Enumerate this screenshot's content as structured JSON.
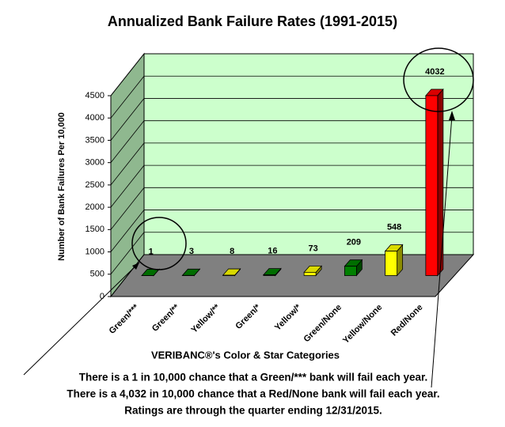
{
  "chart_data": {
    "type": "bar3d",
    "title": "Annualized Bank Failure Rates (1991-2015)",
    "y_label": "Number of Bank Failures Per 10,000",
    "x_label": "VERIBANC®'s Color & Star Categories",
    "categories": [
      "Green/***",
      "Green/**",
      "Yellow/**",
      "Green/*",
      "Yellow/*",
      "Green/None",
      "Yellow/None",
      "Red/None"
    ],
    "values": [
      1,
      3,
      8,
      16,
      73,
      209,
      548,
      4032
    ],
    "colors": [
      "#008000",
      "#008000",
      "#ffff00",
      "#008000",
      "#ffff00",
      "#008000",
      "#ffff00",
      "#ff0000"
    ],
    "ylim": [
      0,
      4500
    ],
    "yticks": [
      0,
      500,
      1000,
      1500,
      2000,
      2500,
      3000,
      3500,
      4000,
      4500
    ],
    "grid": true,
    "annotations": [
      "There is a 1 in 10,000 chance that a Green/*** bank will fail each year.",
      "There is a 4,032 in 10,000 chance that a Red/None bank will fail each year.",
      "Ratings are through the quarter ending 12/31/2015."
    ]
  }
}
